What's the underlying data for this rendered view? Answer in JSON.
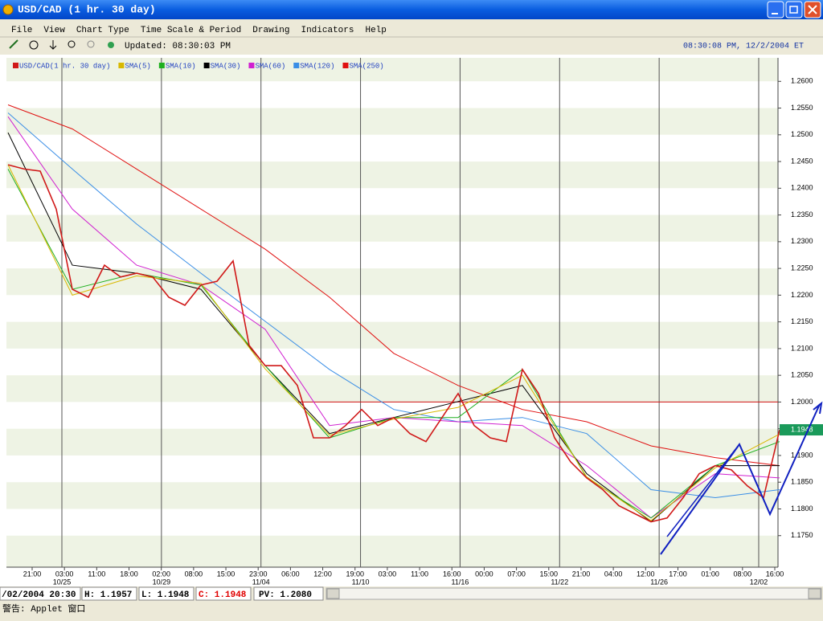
{
  "window": {
    "title": "USD/CAD (1 hr.  30 day)",
    "menu": [
      "File",
      "View",
      "Chart Type",
      "Time Scale & Period",
      "Drawing",
      "Indicators",
      "Help"
    ],
    "updated": "Updated: 08:30:03 PM",
    "clock": "08:30:08 PM, 12/2/2004 ET"
  },
  "chart_data": {
    "type": "line",
    "series": [
      {
        "name": "USD/CAD(1 hr.  30 day)",
        "color": "#d01818",
        "values": [
          1.2444,
          1.2436,
          1.2432,
          1.2361,
          1.2211,
          1.2196,
          1.2256,
          1.2234,
          1.2241,
          1.2234,
          1.2196,
          1.2181,
          1.2219,
          1.2226,
          1.2264,
          1.2106,
          1.2068,
          1.2068,
          1.2031,
          1.1933,
          1.1933,
          1.1956,
          1.1986,
          1.1956,
          1.1971,
          1.1941,
          1.1926,
          1.1971,
          1.2016,
          1.1956,
          1.1933,
          1.1926,
          1.2061,
          1.2016,
          1.1933,
          1.1888,
          1.1858,
          1.1836,
          1.1806,
          1.1791,
          1.1776,
          1.1783,
          1.1821,
          1.1866,
          1.1881,
          1.1873,
          1.1843,
          1.1821,
          1.1948
        ]
      },
      {
        "name": "SMA(5)",
        "color": "#d8b800",
        "values": [
          1.2444,
          1.22,
          1.2236,
          1.2222,
          1.2062,
          1.1938,
          1.1968,
          1.199,
          1.205,
          1.186,
          1.1778,
          1.1877,
          1.194
        ]
      },
      {
        "name": "SMA(10)",
        "color": "#20b020",
        "values": [
          1.2436,
          1.2211,
          1.2241,
          1.2219,
          1.2068,
          1.1933,
          1.1971,
          1.1971,
          1.2061,
          1.1858,
          1.1783,
          1.1881,
          1.1926
        ]
      },
      {
        "name": "SMA(30)",
        "color": "#000000",
        "values": [
          1.2504,
          1.2256,
          1.2241,
          1.2211,
          1.2068,
          1.1941,
          1.1971,
          1.2001,
          1.2031,
          1.1866,
          1.1776,
          1.1881,
          1.1881
        ]
      },
      {
        "name": "SMA(60)",
        "color": "#d020d0",
        "values": [
          1.2534,
          1.2361,
          1.2256,
          1.2219,
          1.2136,
          1.1956,
          1.1971,
          1.1963,
          1.1956,
          1.1881,
          1.1783,
          1.1866,
          1.1858
        ]
      },
      {
        "name": "SMA(120)",
        "color": "#3a8ee6",
        "values": [
          1.2541,
          1.2436,
          1.2333,
          1.2241,
          1.2151,
          1.2061,
          1.1986,
          1.1963,
          1.1971,
          1.1941,
          1.1836,
          1.1821,
          1.1836
        ]
      },
      {
        "name": "SMA(250)",
        "color": "#e01010",
        "values": [
          1.2556,
          1.2511,
          1.2436,
          1.2361,
          1.2286,
          1.2196,
          1.2091,
          1.2031,
          1.1986,
          1.1963,
          1.1918,
          1.1896,
          1.1881
        ]
      }
    ],
    "reference_line": 1.2,
    "ylim": [
      1.1691,
      1.2644
    ],
    "yticks": [
      {
        "value": 1.26,
        "label": "1.2600"
      },
      {
        "value": 1.255,
        "label": "1.2550"
      },
      {
        "value": 1.25,
        "label": "1.2500"
      },
      {
        "value": 1.245,
        "label": "1.2450"
      },
      {
        "value": 1.24,
        "label": "1.2400"
      },
      {
        "value": 1.235,
        "label": "1.2350"
      },
      {
        "value": 1.23,
        "label": "1.2300"
      },
      {
        "value": 1.225,
        "label": "1.2250"
      },
      {
        "value": 1.22,
        "label": "1.2200"
      },
      {
        "value": 1.215,
        "label": "1.2150"
      },
      {
        "value": 1.21,
        "label": "1.2100"
      },
      {
        "value": 1.205,
        "label": "1.2050"
      },
      {
        "value": 1.2,
        "label": "1.2000"
      },
      {
        "value": 1.195,
        "label": "1.1950"
      },
      {
        "value": 1.19,
        "label": "1.1900"
      },
      {
        "value": 1.185,
        "label": "1.1850"
      },
      {
        "value": 1.18,
        "label": "1.1800"
      },
      {
        "value": 1.175,
        "label": "1.1750"
      }
    ],
    "time_labels": [
      "21:00",
      "03:00",
      "11:00",
      "18:00",
      "02:00",
      "08:00",
      "15:00",
      "23:00",
      "06:00",
      "12:00",
      "19:00",
      "03:00",
      "11:00",
      "16:00",
      "00:00",
      "07:00",
      "15:00",
      "21:00",
      "04:00",
      "12:00",
      "17:00",
      "01:00",
      "08:00",
      "16:00"
    ],
    "date_labels": [
      "10/25",
      "10/29",
      "11/04",
      "11/10",
      "11/16",
      "11/22",
      "11/26",
      "12/02"
    ]
  },
  "status_bar": {
    "time": "/02/2004 20:30",
    "high": "H: 1.1957",
    "low": "L: 1.1948",
    "close": "C: 1.1948",
    "pv": "PV: 1.2080",
    "applet": "警告: Applet 窗口"
  }
}
